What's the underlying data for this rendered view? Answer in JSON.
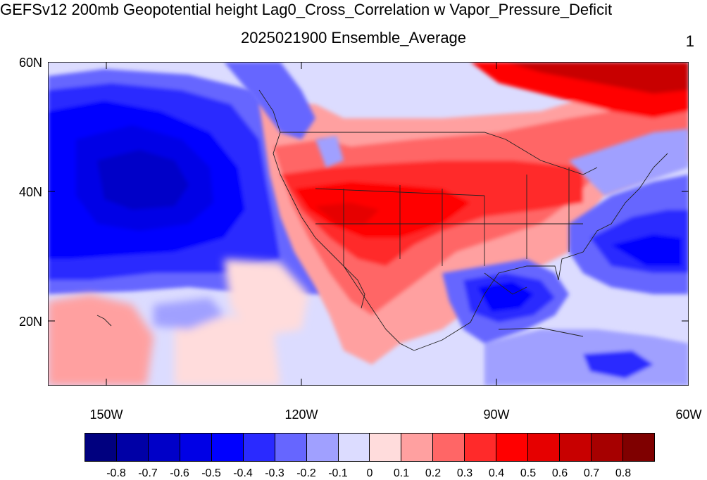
{
  "header": {
    "title": "GEFSv12 200mb Geopotential height Lag0_Cross_Correlation w Vapor_Pressure_Deficit",
    "subtitle": "2025021900 Ensemble_Average",
    "right_string": "1"
  },
  "map": {
    "region": "North America / Pacific",
    "lat_labels": [
      "60N",
      "40N",
      "20N"
    ],
    "lon_labels": [
      "150W",
      "120W",
      "90W",
      "60W"
    ],
    "lat_range": [
      10,
      60
    ],
    "lon_range": [
      -159,
      -60
    ]
  },
  "colorbar": {
    "labels": [
      "-0.8",
      "-0.7",
      "-0.6",
      "-0.5",
      "-0.4",
      "-0.3",
      "-0.2",
      "-0.1",
      "0",
      "0.1",
      "0.2",
      "0.3",
      "0.4",
      "0.5",
      "0.6",
      "0.7",
      "0.8"
    ],
    "colors": [
      "#00007f",
      "#0000a6",
      "#0000c8",
      "#0000e6",
      "#0000ff",
      "#2a2aff",
      "#6666ff",
      "#a0a0ff",
      "#dcdcff",
      "#ffdcdc",
      "#ffa0a0",
      "#ff6666",
      "#ff2a2a",
      "#ff0000",
      "#e60000",
      "#c80000",
      "#a60000",
      "#7f0000"
    ]
  }
}
